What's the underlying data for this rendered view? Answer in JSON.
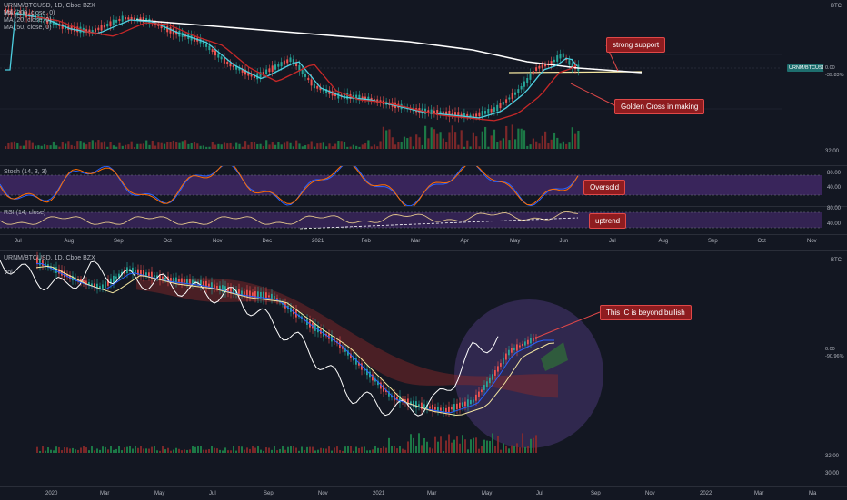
{
  "top_chart": {
    "symbol_line": "URNM/BTCUSD, 1D, Cboe BZX",
    "indicators": [
      "Vol",
      "MA (200, close, 0)",
      "MA (20, close, 0)",
      "MA (50, close, 0)"
    ],
    "currency": "BTC",
    "axis_label_32": "32.00",
    "price_symbol": "URNM/BTCUSD",
    "price_value": "0.00",
    "price_change": "-39.83%",
    "months": [
      "Jul",
      "Aug",
      "Sep",
      "Oct",
      "Nov",
      "Dec",
      "2021",
      "Feb",
      "Mar",
      "Apr",
      "May",
      "Jun",
      "Jul",
      "Aug",
      "Sep",
      "Oct",
      "Nov"
    ],
    "callouts": {
      "support": "strong support",
      "golden_cross": "Golden Cross in making"
    }
  },
  "stoch_pane": {
    "title": "Stoch (14, 3, 3)",
    "levels": [
      "80.00",
      "40.00"
    ],
    "callout": "Oversold"
  },
  "rsi_pane": {
    "title": "RSI (14, close)",
    "levels": [
      "80.00",
      "40.00"
    ],
    "callout": "uptrend"
  },
  "bottom_chart": {
    "symbol_line": "URNM/BTCUSD, 1D, Cboe BZX",
    "indicators": [
      "Vol"
    ],
    "currency": "BTC",
    "price_value": "0.00",
    "price_change": "-90.96%",
    "levels": [
      "32.00",
      "30.00"
    ],
    "callout": "This IC is beyond bullish",
    "months": [
      "2020",
      "Mar",
      "May",
      "Jul",
      "Sep",
      "Nov",
      "2021",
      "Mar",
      "May",
      "Jul",
      "Sep",
      "Nov",
      "2022",
      "Mar",
      "Ma"
    ]
  },
  "colors": {
    "background": "#131722",
    "up": "#26a69a",
    "down": "#ef5350",
    "ma200": "#ffffff",
    "ma20": "#4dd0e1",
    "ma50": "#c62828",
    "stoch_band": "#4a2c73",
    "callout_bg": "#8e1c1f"
  }
}
